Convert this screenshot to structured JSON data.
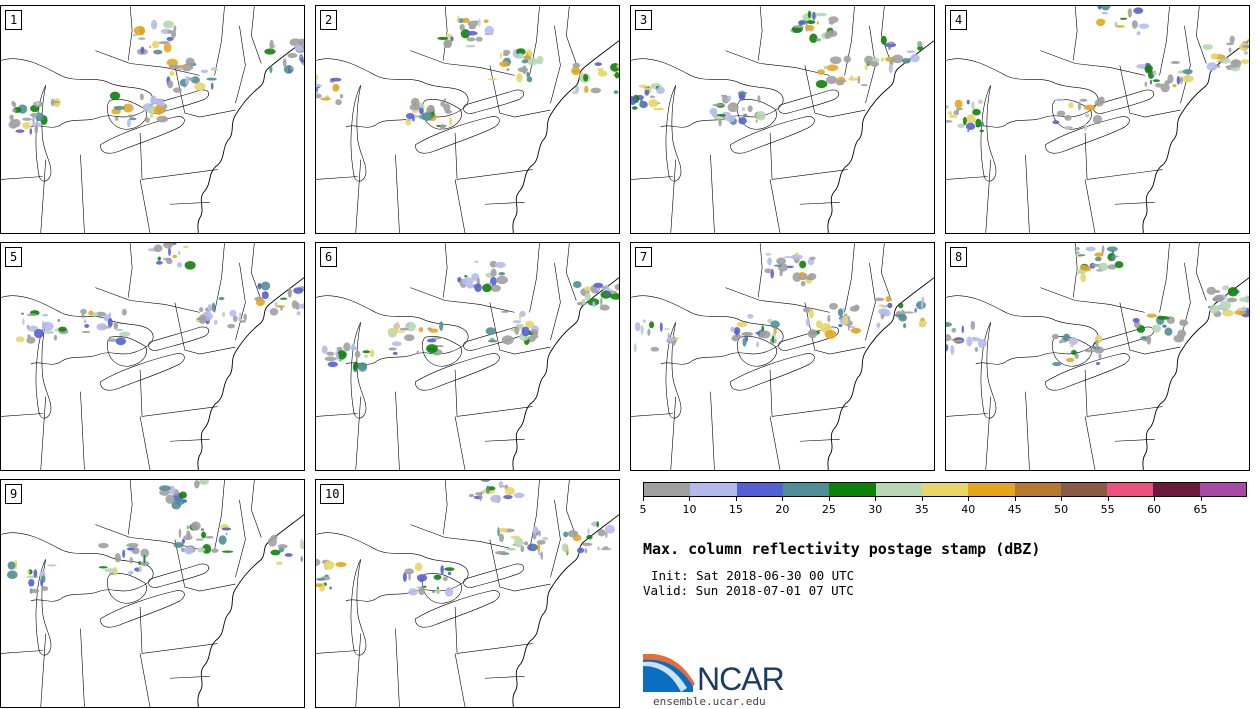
{
  "panels": [
    {
      "label": "1"
    },
    {
      "label": "2"
    },
    {
      "label": "3"
    },
    {
      "label": "4"
    },
    {
      "label": "5"
    },
    {
      "label": "6"
    },
    {
      "label": "7"
    },
    {
      "label": "8"
    },
    {
      "label": "9"
    },
    {
      "label": "10"
    }
  ],
  "colorbar": {
    "colors": [
      "#a0a0a0",
      "#b4bbec",
      "#5461d4",
      "#4f8f95",
      "#0d8208",
      "#b6d6b4",
      "#e8d666",
      "#e5a61e",
      "#b57a30",
      "#8a5a44",
      "#ec5180",
      "#6b1a3c",
      "#a84aa5"
    ],
    "ticks": [
      "5",
      "10",
      "15",
      "20",
      "25",
      "30",
      "35",
      "40",
      "45",
      "50",
      "55",
      "60",
      "65"
    ]
  },
  "title": "Max. column reflectivity postage stamp (dBZ)",
  "init": "Init: Sat 2018-06-30 00 UTC",
  "valid": "Valid: Sun 2018-07-01 07 UTC",
  "logo": {
    "text": "NCAR",
    "url": "ensemble.ucar.edu"
  }
}
